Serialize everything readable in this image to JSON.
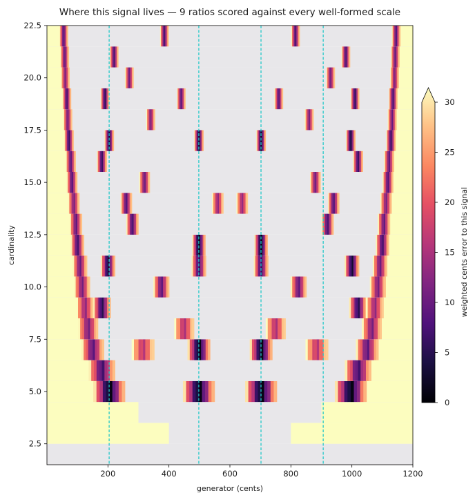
{
  "chart_data": {
    "type": "heatmap",
    "title": "Where this signal lives — 9 ratios scored against every well-formed scale",
    "xlabel": "generator (cents)",
    "ylabel": "cardinality",
    "xlim": [
      0,
      1200
    ],
    "ylim": [
      1.5,
      22.5
    ],
    "xticks": [
      200,
      400,
      600,
      800,
      1000,
      1200
    ],
    "yticks": [
      2.5,
      5.0,
      7.5,
      10.0,
      12.5,
      15.0,
      17.5,
      20.0,
      22.5
    ],
    "xtick_labels": [
      "200",
      "400",
      "600",
      "800",
      "1000",
      "1200"
    ],
    "ytick_labels": [
      "2.5",
      "5.0",
      "7.5",
      "10.0",
      "12.5",
      "15.0",
      "17.5",
      "20.0",
      "22.5"
    ],
    "grid": false,
    "legend": "none",
    "reference_lines_x": [
      204,
      498,
      702,
      906
    ],
    "reference_line_color": "#22c8c8",
    "missing_color": "#e8e7ea",
    "colorbar": {
      "label": "weighted cents error to this signal",
      "colormap": "magma",
      "range": [
        0,
        30
      ],
      "ticks": [
        0,
        5,
        10,
        15,
        20,
        25,
        30
      ],
      "tick_labels": [
        "0",
        "5",
        "10",
        "15",
        "20",
        "25",
        "30"
      ],
      "extend": "max"
    },
    "rows": [
      {
        "n": 2,
        "yellow_ranges": [],
        "bands": []
      },
      {
        "n": 3,
        "yellow_ranges": [
          [
            0,
            400
          ],
          [
            800,
            1200
          ]
        ],
        "bands": []
      },
      {
        "n": 4,
        "yellow_ranges": [
          [
            0,
            300
          ],
          [
            900,
            1200
          ]
        ],
        "bands": []
      },
      {
        "n": 5,
        "yellow_ranges": [
          [
            0,
            200
          ],
          [
            1000,
            1200
          ]
        ],
        "bands": [
          [
            204,
            0
          ],
          [
            498,
            0
          ],
          [
            702,
            0
          ],
          [
            996,
            0
          ]
        ]
      },
      {
        "n": 6,
        "yellow_ranges": [
          [
            0,
            165
          ],
          [
            1035,
            1200
          ]
        ],
        "bands": [
          [
            180,
            6
          ],
          [
            1020,
            6
          ]
        ]
      },
      {
        "n": 7,
        "yellow_ranges": [
          [
            0,
            140
          ],
          [
            1060,
            1200
          ]
        ],
        "bands": [
          [
            150,
            8
          ],
          [
            315,
            15
          ],
          [
            498,
            0
          ],
          [
            702,
            0
          ],
          [
            885,
            15
          ],
          [
            1050,
            8
          ]
        ]
      },
      {
        "n": 8,
        "yellow_ranges": [
          [
            0,
            125
          ],
          [
            1080,
            1200
          ]
        ],
        "bands": [
          [
            135,
            10
          ],
          [
            450,
            14
          ],
          [
            750,
            14
          ],
          [
            1065,
            10
          ]
        ]
      },
      {
        "n": 9,
        "yellow_ranges": [
          [
            0,
            112
          ],
          [
            1090,
            1200
          ]
        ],
        "bands": [
          [
            125,
            12
          ],
          [
            180,
            4
          ],
          [
            1020,
            4
          ],
          [
            1075,
            12
          ]
        ]
      },
      {
        "n": 10,
        "yellow_ranges": [
          [
            0,
            102
          ],
          [
            1100,
            1200
          ]
        ],
        "bands": [
          [
            115,
            10
          ],
          [
            375,
            8
          ],
          [
            825,
            8
          ],
          [
            1085,
            10
          ]
        ]
      },
      {
        "n": 11,
        "yellow_ranges": [
          [
            0,
            93
          ],
          [
            1110,
            1200
          ]
        ],
        "bands": [
          [
            108,
            9
          ],
          [
            200,
            2
          ],
          [
            498,
            5
          ],
          [
            702,
            5
          ],
          [
            1000,
            2
          ],
          [
            1092,
            9
          ]
        ]
      },
      {
        "n": 12,
        "yellow_ranges": [
          [
            0,
            87
          ],
          [
            1115,
            1200
          ]
        ],
        "bands": [
          [
            100,
            6
          ],
          [
            498,
            0
          ],
          [
            702,
            0
          ],
          [
            1100,
            6
          ]
        ]
      },
      {
        "n": 13,
        "yellow_ranges": [
          [
            0,
            80
          ],
          [
            1120,
            1200
          ]
        ],
        "bands": [
          [
            95,
            8
          ],
          [
            280,
            6
          ],
          [
            920,
            6
          ],
          [
            1105,
            8
          ]
        ]
      },
      {
        "n": 14,
        "yellow_ranges": [
          [
            0,
            75
          ],
          [
            1125,
            1200
          ]
        ],
        "bands": [
          [
            88,
            10
          ],
          [
            260,
            7
          ],
          [
            560,
            12
          ],
          [
            640,
            12
          ],
          [
            940,
            7
          ],
          [
            1112,
            10
          ]
        ]
      },
      {
        "n": 15,
        "yellow_ranges": [
          [
            0,
            70
          ],
          [
            1130,
            1200
          ]
        ],
        "bands": [
          [
            82,
            7
          ],
          [
            320,
            9
          ],
          [
            880,
            9
          ],
          [
            1118,
            7
          ]
        ]
      },
      {
        "n": 16,
        "yellow_ranges": [
          [
            0,
            66
          ],
          [
            1135,
            1200
          ]
        ],
        "bands": [
          [
            78,
            8
          ],
          [
            180,
            5
          ],
          [
            1020,
            5
          ],
          [
            1122,
            8
          ]
        ]
      },
      {
        "n": 17,
        "yellow_ranges": [
          [
            0,
            62
          ],
          [
            1140,
            1200
          ]
        ],
        "bands": [
          [
            72,
            5
          ],
          [
            204,
            2
          ],
          [
            498,
            1
          ],
          [
            702,
            1
          ],
          [
            996,
            2
          ],
          [
            1128,
            5
          ]
        ]
      },
      {
        "n": 18,
        "yellow_ranges": [
          [
            0,
            58
          ],
          [
            1145,
            1200
          ]
        ],
        "bands": [
          [
            68,
            9
          ],
          [
            340,
            10
          ],
          [
            860,
            10
          ],
          [
            1132,
            9
          ]
        ]
      },
      {
        "n": 19,
        "yellow_ranges": [
          [
            0,
            55
          ],
          [
            1148,
            1200
          ]
        ],
        "bands": [
          [
            65,
            6
          ],
          [
            190,
            4
          ],
          [
            440,
            7
          ],
          [
            760,
            7
          ],
          [
            1010,
            4
          ],
          [
            1135,
            6
          ]
        ]
      },
      {
        "n": 20,
        "yellow_ranges": [
          [
            0,
            52
          ],
          [
            1150,
            1200
          ]
        ],
        "bands": [
          [
            60,
            10
          ],
          [
            270,
            9
          ],
          [
            930,
            9
          ],
          [
            1140,
            10
          ]
        ]
      },
      {
        "n": 21,
        "yellow_ranges": [
          [
            0,
            50
          ],
          [
            1152,
            1200
          ]
        ],
        "bands": [
          [
            58,
            8
          ],
          [
            220,
            6
          ],
          [
            980,
            6
          ],
          [
            1142,
            8
          ]
        ]
      },
      {
        "n": 22,
        "yellow_ranges": [
          [
            0,
            47
          ],
          [
            1155,
            1200
          ]
        ],
        "bands": [
          [
            55,
            7
          ],
          [
            385,
            6
          ],
          [
            815,
            6
          ],
          [
            1145,
            7
          ]
        ]
      }
    ]
  }
}
